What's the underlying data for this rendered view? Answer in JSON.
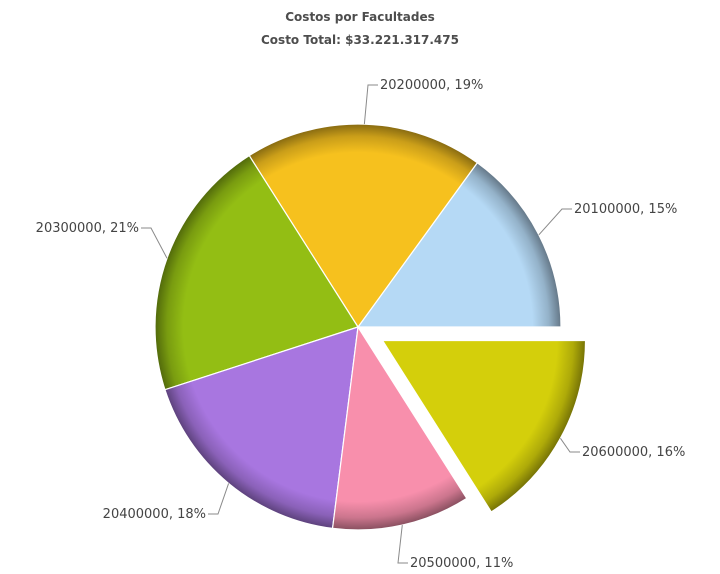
{
  "chart_data": {
    "type": "pie",
    "title": "Costos por Facultades",
    "subtitle": "Costo Total: $33.221.317.475",
    "slices": [
      {
        "name": "20100000",
        "percent": 15,
        "label": "20100000, 15%",
        "color": "#b5d9f5",
        "exploded": false
      },
      {
        "name": "20200000",
        "percent": 19,
        "label": "20200000, 19%",
        "color": "#f6c11e",
        "exploded": false
      },
      {
        "name": "20300000",
        "percent": 21,
        "label": "20300000, 21%",
        "color": "#93be14",
        "exploded": false
      },
      {
        "name": "20400000",
        "percent": 18,
        "label": "20400000, 18%",
        "color": "#a876e0",
        "exploded": false
      },
      {
        "name": "20500000",
        "percent": 11,
        "label": "20500000, 11%",
        "color": "#f88fac",
        "exploded": false
      },
      {
        "name": "20600000",
        "percent": 16,
        "label": "20600000, 16%",
        "color": "#d4cf0b",
        "exploded": true
      }
    ]
  }
}
